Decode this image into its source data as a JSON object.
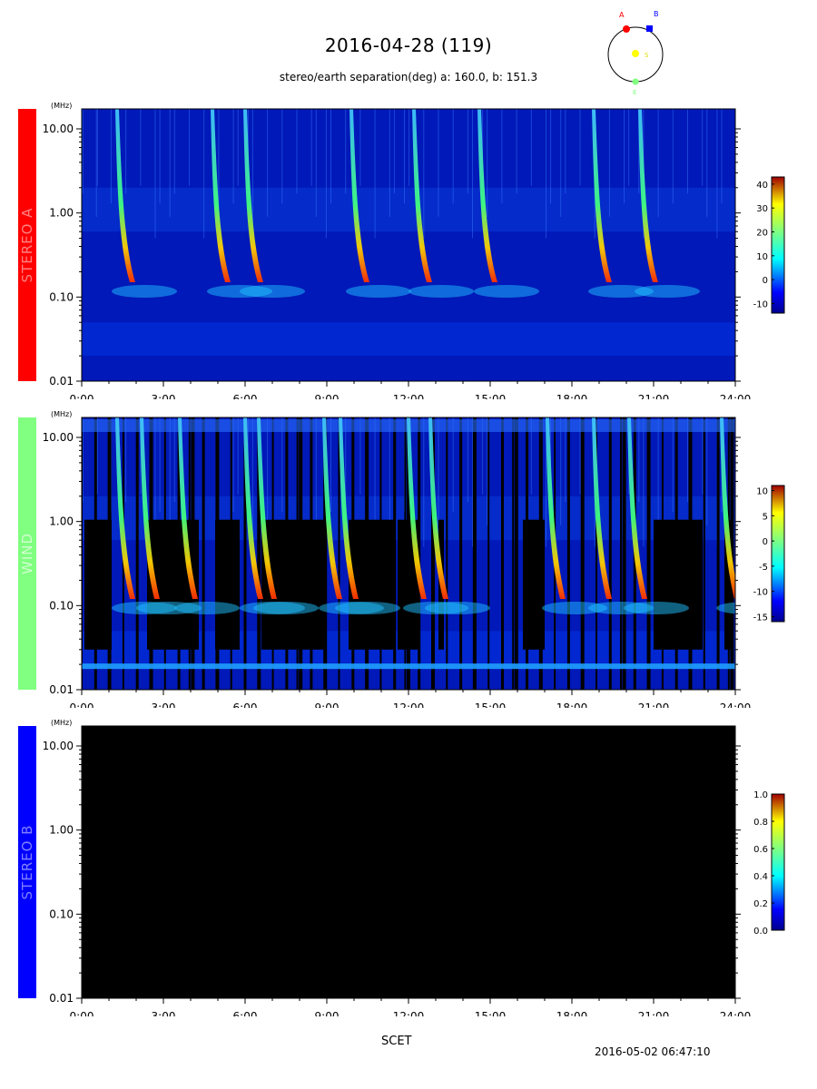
{
  "header": {
    "title": "2016-04-28 (119)",
    "subtitle": "stereo/earth separation(deg) a: 160.0, b: 151.3",
    "orbit_labels": {
      "a": "A",
      "b": "B",
      "s": "S",
      "e": "E"
    }
  },
  "colors": {
    "stereo_a": "#ff0000",
    "wind": "#80ff80",
    "stereo_b": "#0000ff"
  },
  "chart_data": [
    {
      "type": "heatmap",
      "panel": "STEREO A",
      "ylabel": "(MHz)",
      "xlabel": "SCET",
      "xlim": [
        "0:00",
        "24:00"
      ],
      "ylim": [
        0.01,
        10
      ],
      "yscale": "log",
      "x_ticks": [
        "0:00",
        "3:00",
        "6:00",
        "9:00",
        "12:00",
        "15:00",
        "18:00",
        "21:00",
        "24:00"
      ],
      "y_ticks": [
        "10.00",
        "1.00",
        "0.10",
        "0.01"
      ],
      "colorbar": {
        "ticks": [
          "40",
          "30",
          "20",
          "10",
          "0",
          "-10"
        ],
        "range": [
          -14,
          43
        ]
      },
      "bursts_hours": [
        1.3,
        4.8,
        6.0,
        9.9,
        12.2,
        14.6,
        18.8,
        20.5
      ]
    },
    {
      "type": "heatmap",
      "panel": "WIND",
      "ylabel": "(MHz)",
      "xlim": [
        "0:00",
        "24:00"
      ],
      "ylim": [
        0.01,
        10
      ],
      "yscale": "log",
      "x_ticks": [
        "0:00",
        "3:00",
        "6:00",
        "9:00",
        "12:00",
        "15:00",
        "18:00",
        "21:00",
        "24:00"
      ],
      "y_ticks": [
        "10.00",
        "1.00",
        "0.10",
        "0.01"
      ],
      "colorbar": {
        "ticks": [
          "10",
          "5",
          "0",
          "-5",
          "-10",
          "-15"
        ],
        "range": [
          -16,
          11
        ]
      },
      "bursts_hours": [
        1.3,
        2.2,
        3.6,
        6.0,
        6.5,
        8.9,
        9.5,
        12.0,
        12.8,
        17.1,
        18.8,
        20.1,
        23.5
      ]
    },
    {
      "type": "heatmap",
      "panel": "STEREO B",
      "ylabel": "(MHz)",
      "xlim": [
        "0:00",
        "24:00"
      ],
      "ylim": [
        0.01,
        10
      ],
      "yscale": "log",
      "x_ticks": [
        "0:00",
        "3:00",
        "6:00",
        "9:00",
        "12:00",
        "15:00",
        "18:00",
        "21:00",
        "24:00"
      ],
      "y_ticks": [
        "10.00",
        "1.00",
        "0.10",
        "0.01"
      ],
      "colorbar": {
        "ticks": [
          "1.0",
          "0.8",
          "0.6",
          "0.4",
          "0.2",
          "0.0"
        ],
        "range": [
          0,
          1
        ]
      },
      "bursts_hours": []
    }
  ],
  "panels": {
    "stereo_a": {
      "label": "STEREO A"
    },
    "wind": {
      "label": "WIND"
    },
    "stereo_b": {
      "label": "STEREO B"
    }
  },
  "footer": {
    "xlabel": "SCET",
    "timestamp": "2016-05-02 06:47:10"
  }
}
